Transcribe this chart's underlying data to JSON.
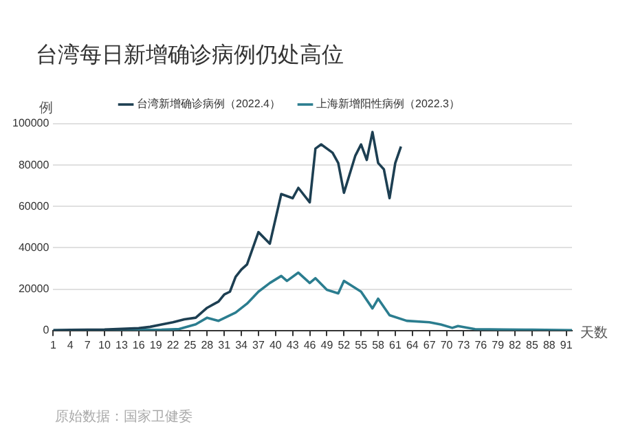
{
  "chart_data": {
    "type": "line",
    "title": "台湾每日新增确诊病例仍处高位",
    "ylabel": "例",
    "xlabel": "天数",
    "xlim": [
      1,
      92
    ],
    "xticks": [
      1,
      4,
      7,
      10,
      13,
      16,
      19,
      22,
      25,
      28,
      31,
      34,
      37,
      40,
      43,
      46,
      49,
      52,
      55,
      58,
      61,
      64,
      67,
      70,
      73,
      76,
      79,
      82,
      85,
      88,
      91
    ],
    "ylim": [
      0,
      100000
    ],
    "yticks": [
      0,
      20000,
      40000,
      60000,
      80000,
      100000
    ],
    "grid": "y",
    "legend": "top",
    "marker": "none",
    "line_style": "solid",
    "series": [
      {
        "name": "台湾新增确诊病例（2022.4）",
        "color": "#1d3f52",
        "x": [
          1,
          4,
          7,
          10,
          13,
          16,
          18,
          20,
          22,
          24,
          26,
          28,
          29,
          30,
          31,
          32,
          33,
          34,
          35,
          37,
          39,
          41,
          43,
          44,
          46,
          47,
          48,
          50,
          51,
          52,
          54,
          55,
          56,
          57,
          58,
          59,
          60,
          61,
          62
        ],
        "values": [
          200,
          300,
          400,
          500,
          800,
          1200,
          1800,
          2900,
          4000,
          5400,
          6200,
          11000,
          12500,
          14000,
          17400,
          18800,
          26000,
          29500,
          32000,
          47600,
          42000,
          66000,
          64000,
          69000,
          62000,
          88000,
          90000,
          86000,
          81000,
          66600,
          84600,
          90000,
          82500,
          96000,
          81000,
          78000,
          64000,
          81000,
          89000
        ]
      },
      {
        "name": "上海新增阳性病例（2022.3）",
        "color": "#2b7d8f",
        "x": [
          1,
          10,
          20,
          23,
          26,
          28,
          30,
          33,
          35,
          37,
          39,
          41,
          42,
          44,
          46,
          47,
          49,
          51,
          52,
          55,
          57,
          58,
          60,
          63,
          67,
          69,
          71,
          72,
          75,
          80,
          85,
          92
        ],
        "values": [
          100,
          200,
          400,
          700,
          3000,
          6200,
          4700,
          8700,
          13000,
          18800,
          23000,
          26400,
          24000,
          28000,
          23000,
          25300,
          19700,
          18000,
          24000,
          18800,
          10700,
          15400,
          7400,
          4700,
          4000,
          2900,
          1300,
          2200,
          700,
          500,
          400,
          200
        ]
      }
    ],
    "annotations": [
      "原始数据：国家卫健委"
    ]
  }
}
